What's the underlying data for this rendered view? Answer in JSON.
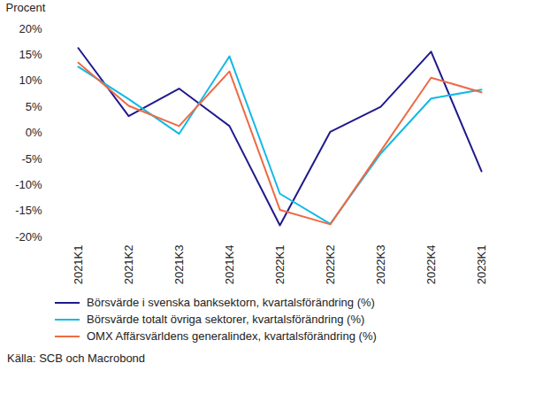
{
  "chart_data": {
    "type": "line",
    "y_label": "Procent",
    "categories": [
      "2021K1",
      "2021K2",
      "2021K3",
      "2021K4",
      "2022K1",
      "2022K2",
      "2022K3",
      "2022K4",
      "2023K1"
    ],
    "series": [
      {
        "name": "Börsvärde i svenska banksektorn, kvartalsförändring (%)",
        "color": "#1f1a8c",
        "values": [
          16.3,
          3.2,
          8.5,
          1.3,
          -17.8,
          0.2,
          5.0,
          15.6,
          -7.4
        ]
      },
      {
        "name": "Börsvärde totalt övriga sektorer, kvartalsförändring (%)",
        "color": "#12b9e6",
        "values": [
          12.7,
          6.5,
          -0.2,
          14.7,
          -11.7,
          -17.5,
          -4.0,
          6.6,
          8.3
        ]
      },
      {
        "name": "OMX Affärsvärldens generalindex, kvartalsförändring (%)",
        "color": "#ee6a43",
        "values": [
          13.5,
          5.2,
          1.3,
          11.8,
          -14.8,
          -17.6,
          -3.5,
          10.6,
          7.8
        ]
      }
    ],
    "ylim": [
      -20,
      20
    ],
    "yticks": [
      {
        "value": -20,
        "label": "-20%"
      },
      {
        "value": -15,
        "label": "-15%"
      },
      {
        "value": -10,
        "label": "-10%"
      },
      {
        "value": -5,
        "label": "-5%"
      },
      {
        "value": 0,
        "label": "0%"
      },
      {
        "value": 5,
        "label": "5%"
      },
      {
        "value": 10,
        "label": "10%"
      },
      {
        "value": 15,
        "label": "15%"
      },
      {
        "value": 20,
        "label": "20%"
      }
    ],
    "grid": false,
    "legend": "bottom",
    "source": "Källa: SCB och Macrobond"
  }
}
